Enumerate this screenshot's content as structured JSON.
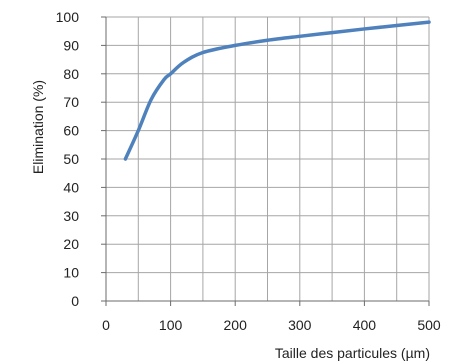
{
  "chart_data": {
    "type": "line",
    "title": "",
    "xlabel": "Taille des particules (µm)",
    "ylabel": "Elimination (%)",
    "xlim": [
      0,
      500
    ],
    "ylim": [
      0,
      100
    ],
    "x_ticks": [
      0,
      100,
      200,
      300,
      400,
      500
    ],
    "x_tick_labels": [
      "0",
      "100",
      "200",
      "300",
      "400",
      "500"
    ],
    "y_ticks": [
      0,
      10,
      20,
      30,
      40,
      50,
      60,
      70,
      80,
      90,
      100
    ],
    "y_tick_labels": [
      "0",
      "10",
      "20",
      "30",
      "40",
      "50",
      "60",
      "70",
      "80",
      "90",
      "100"
    ],
    "grid": true,
    "legend": "none",
    "series": [
      {
        "color": "#4f81bd",
        "x": [
          30,
          50,
          70,
          90,
          100,
          120,
          150,
          200,
          250,
          300,
          350,
          400,
          450,
          500
        ],
        "y": [
          50,
          60,
          71,
          78,
          80,
          84,
          87.5,
          90,
          91.8,
          93.2,
          94.5,
          95.8,
          97,
          98.2
        ]
      }
    ]
  }
}
